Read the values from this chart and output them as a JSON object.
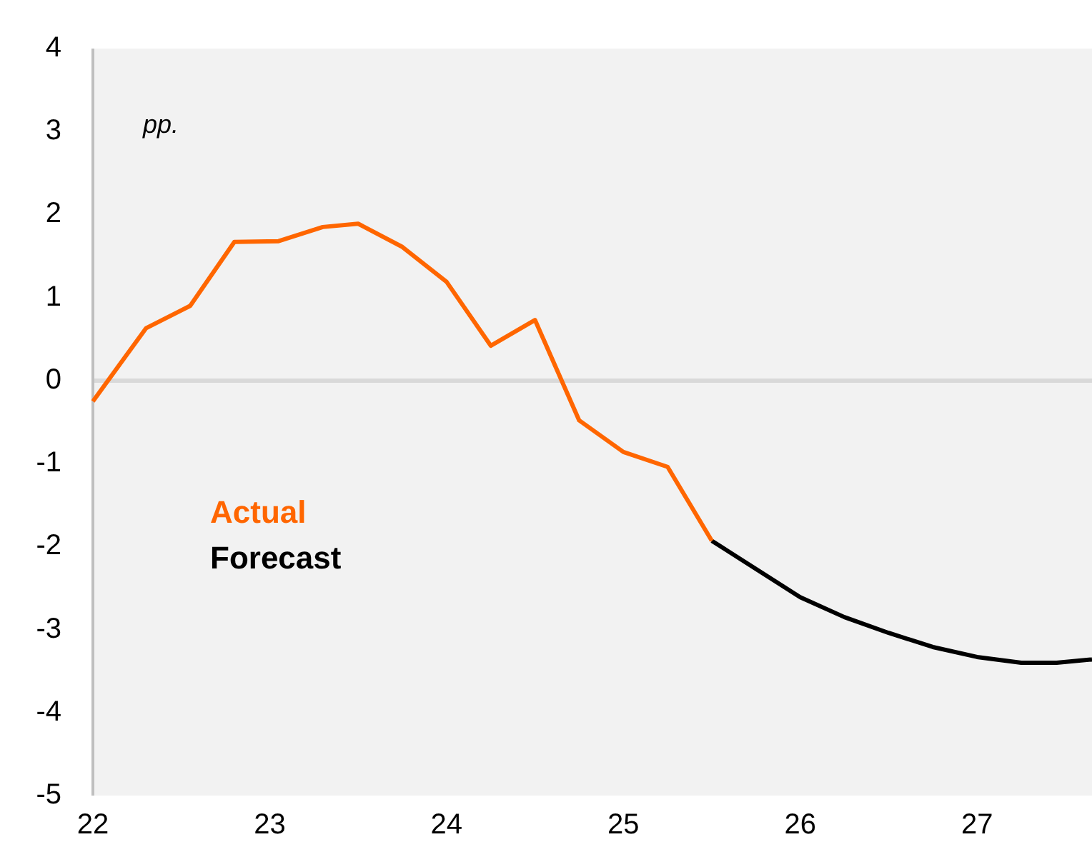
{
  "chart_data": {
    "type": "line",
    "annotations": [
      "pp."
    ],
    "series": [
      {
        "name": "Actual",
        "color": "#ff6600",
        "x": [
          22.0,
          22.3,
          22.55,
          22.8,
          23.05,
          23.3,
          23.5,
          23.75,
          24.0,
          24.25,
          24.5,
          24.75,
          25.0,
          25.25,
          25.5
        ],
        "values": [
          -0.25,
          0.63,
          0.9,
          1.67,
          1.68,
          1.85,
          1.89,
          1.61,
          1.19,
          0.42,
          0.73,
          -0.48,
          -0.86,
          -1.04,
          -1.93
        ]
      },
      {
        "name": "Forecast",
        "color": "#000000",
        "x": [
          25.5,
          25.75,
          26.0,
          26.25,
          26.5,
          26.75,
          27.0,
          27.25,
          27.45,
          27.65
        ],
        "values": [
          -1.93,
          -2.27,
          -2.61,
          -2.85,
          -3.04,
          -3.21,
          -3.33,
          -3.4,
          -3.4,
          -3.36
        ]
      }
    ],
    "xlim": [
      22,
      27.65
    ],
    "xticks": [
      22,
      23,
      24,
      25,
      26,
      27
    ],
    "ylim": [
      -5,
      4
    ],
    "yticks": [
      -5,
      -4,
      -3,
      -2,
      -1,
      0,
      1,
      2,
      3,
      4
    ],
    "ref_lines": [
      {
        "axis": "y",
        "value": 0,
        "color": "#d9d9d9"
      }
    ],
    "grid": false,
    "legend": "left",
    "marker": "none",
    "line_style": "solid"
  }
}
